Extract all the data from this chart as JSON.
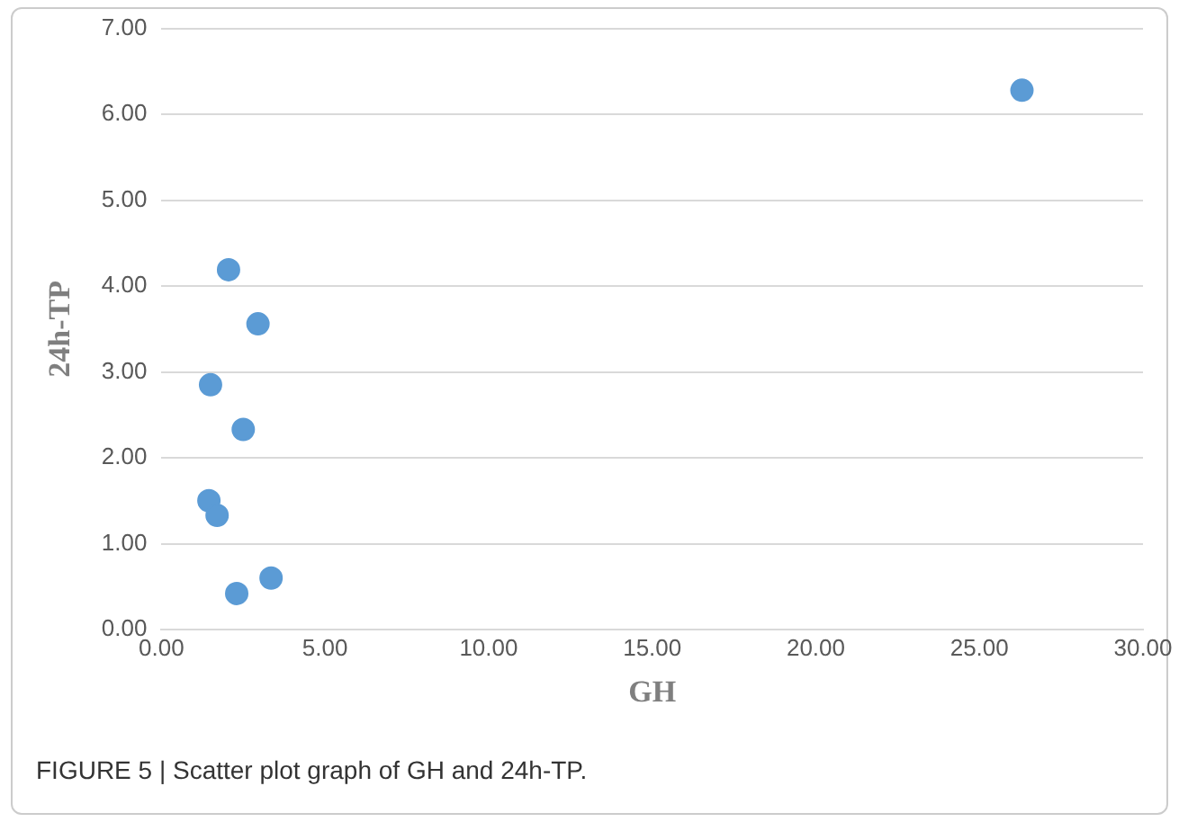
{
  "chart_data": {
    "type": "scatter",
    "xlabel": "GH",
    "ylabel": "24h-TP",
    "annotations": [
      "FIGURE 5 | Scatter plot graph of GH and 24h-TP."
    ],
    "x": [
      26.3,
      2.05,
      2.95,
      1.5,
      2.5,
      1.45,
      1.7,
      3.35,
      2.3
    ],
    "series": [
      {
        "color": "#5b9bd5",
        "values": [
          6.28,
          4.19,
          3.56,
          2.85,
          2.33,
          1.5,
          1.33,
          0.6,
          0.42
        ]
      }
    ],
    "xlim": [
      0,
      30
    ],
    "ylim": [
      0,
      7
    ],
    "xticks": [
      {
        "value": 0,
        "label": "0.00"
      },
      {
        "value": 5,
        "label": "5.00"
      },
      {
        "value": 10,
        "label": "10.00"
      },
      {
        "value": 15,
        "label": "15.00"
      },
      {
        "value": 20,
        "label": "20.00"
      },
      {
        "value": 25,
        "label": "25.00"
      },
      {
        "value": 30,
        "label": "30.00"
      }
    ],
    "yticks": [
      {
        "value": 0,
        "label": "0.00"
      },
      {
        "value": 1,
        "label": "1.00"
      },
      {
        "value": 2,
        "label": "2.00"
      },
      {
        "value": 3,
        "label": "3.00"
      },
      {
        "value": 4,
        "label": "4.00"
      },
      {
        "value": 5,
        "label": "5.00"
      },
      {
        "value": 6,
        "label": "6.00"
      },
      {
        "value": 7,
        "label": "7.00"
      }
    ],
    "grid": "y",
    "marker": "circle",
    "legend": false
  }
}
